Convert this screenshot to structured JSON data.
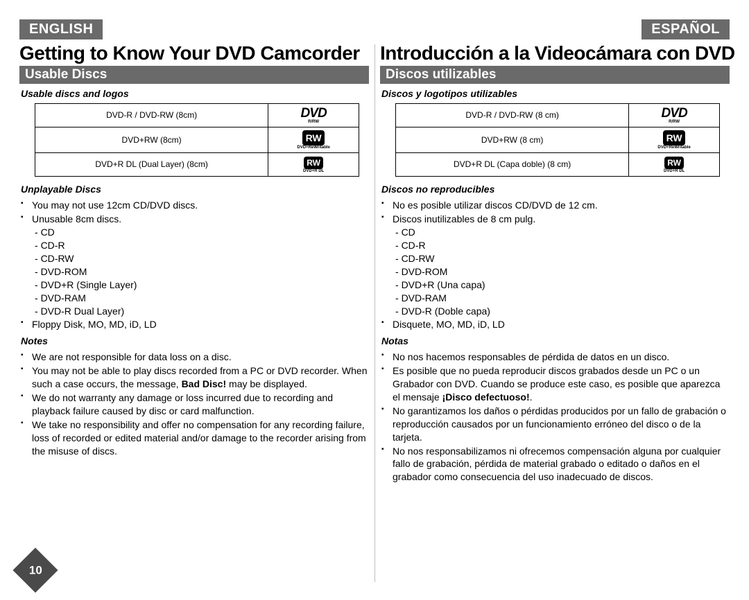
{
  "page": {
    "number": "10",
    "lang_left": "ENGLISH",
    "lang_right": "ESPAÑOL"
  },
  "left": {
    "title": "Getting to Know Your DVD Camcorder",
    "section": "Usable Discs",
    "usable_heading": "Usable discs and logos",
    "table": {
      "r1_text": "DVD-R / DVD-RW (8cm)",
      "r1_logo_top": "DVD",
      "r1_logo_bottom": "R/RW",
      "r2_text": "DVD+RW (8cm)",
      "r2_logo": "RW",
      "r2_logo_sub": "DVD+ReWritable",
      "r3_text": "DVD+R DL (Dual Layer) (8cm)",
      "r3_logo": "RW",
      "r3_logo_sub": "DVD+R DL"
    },
    "unplayable_heading": "Unplayable Discs",
    "unplayable": {
      "b1": "You may not use 12cm CD/DVD discs.",
      "b2": "Unusable 8cm discs.",
      "d1": "CD",
      "d2": "CD-R",
      "d3": "CD-RW",
      "d4": "DVD-ROM",
      "d5": "DVD+R (Single Layer)",
      "d6": "DVD-RAM",
      "d7": "DVD-R Dual Layer)",
      "b3": "Floppy Disk, MO, MD, iD, LD"
    },
    "notes_heading": "Notes",
    "notes": {
      "n1": "We are not responsible for data loss on a disc.",
      "n2_a": "You may not be able to play discs recorded from a PC or DVD recorder. When such a case occurs, the message, ",
      "n2_b": "Bad Disc!",
      "n2_c": " may be displayed.",
      "n3": "We do not warranty any damage or loss incurred due to recording and playback failure caused by disc or card malfunction.",
      "n4": "We take no responsibility and offer no compensation for any recording failure, loss of recorded or edited material and/or damage to the recorder arising from the misuse of discs."
    }
  },
  "right": {
    "title": "Introducción a la Videocámara con DVD",
    "section": "Discos utilizables",
    "usable_heading": "Discos y logotipos utilizables",
    "table": {
      "r1_text": "DVD-R / DVD-RW (8 cm)",
      "r1_logo_top": "DVD",
      "r1_logo_bottom": "R/RW",
      "r2_text": "DVD+RW (8 cm)",
      "r2_logo": "RW",
      "r2_logo_sub": "DVD+ReWritable",
      "r3_text": "DVD+R DL (Capa doble) (8 cm)",
      "r3_logo": "RW",
      "r3_logo_sub": "DVD+R DL"
    },
    "unplayable_heading": "Discos no reproducibles",
    "unplayable": {
      "b1": "No es posible utilizar discos CD/DVD de 12 cm.",
      "b2": "Discos inutilizables de 8 cm pulg.",
      "d1": "CD",
      "d2": "CD-R",
      "d3": "CD-RW",
      "d4": "DVD-ROM",
      "d5": "DVD+R (Una capa)",
      "d6": "DVD-RAM",
      "d7": "DVD-R (Doble capa)",
      "b3": "Disquete, MO, MD, iD, LD"
    },
    "notes_heading": "Notas",
    "notes": {
      "n1": "No nos hacemos responsables de pérdida de datos en un disco.",
      "n2_a": "Es posible que no pueda reproducir discos grabados desde un PC o un Grabador con DVD. Cuando se produce este caso, es posible que aparezca el mensaje ",
      "n2_b": "¡Disco defectuoso!",
      "n2_c": ".",
      "n3": "No garantizamos los daños o pérdidas producidos por un fallo de grabación o reproducción causados por un funcionamiento erróneo del disco o de la tarjeta.",
      "n4": "No nos responsabilizamos ni ofrecemos compensación alguna por cualquier fallo de grabación, pérdida de material grabado o editado o daños en el grabador como consecuencia del uso inadecuado de discos."
    }
  }
}
